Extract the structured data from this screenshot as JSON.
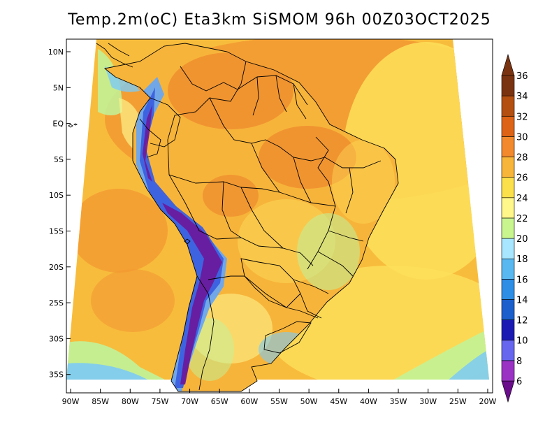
{
  "title": "Temp.2m(oC) Eta3km SiSMOM 96h 00Z03OCT2025",
  "map": {
    "lat_labels": [
      "10N",
      "5N",
      "EQ",
      "5S",
      "10S",
      "15S",
      "20S",
      "25S",
      "30S",
      "35S"
    ],
    "lon_labels": [
      "90W",
      "85W",
      "80W",
      "75W",
      "70W",
      "65W",
      "60W",
      "55W",
      "50W",
      "45W",
      "40W",
      "35W",
      "30W",
      "25W",
      "20W"
    ]
  },
  "colorbar": {
    "levels": [
      "6",
      "8",
      "10",
      "12",
      "14",
      "16",
      "18",
      "20",
      "22",
      "24",
      "26",
      "28",
      "30",
      "32",
      "34",
      "36"
    ],
    "colors": [
      "#6a0c8c",
      "#9a33c4",
      "#6666ee",
      "#1b1bb4",
      "#1a5fcc",
      "#2e8ee6",
      "#5ab8f0",
      "#a8e6ff",
      "#c9f58f",
      "#fff78a",
      "#fbe04b",
      "#f7b53a",
      "#f28a2d",
      "#dd6416",
      "#b34f10",
      "#7a3310"
    ]
  },
  "colors": {
    "ocean_warm": "#f8bc3c",
    "ocean_hot": "#f29a32",
    "ocean_mild": "#fde05a",
    "ocean_cool": "#fbf28a",
    "coast_cool": "#bff39a",
    "coast_cold": "#7ccaf5",
    "land_base": "#f7b43a",
    "land_hot": "#ed8a2e",
    "land_mild": "#fcd959",
    "andes_1": "#6aa7f0",
    "andes_2": "#3b5fe0",
    "andes_3": "#6a1a9c"
  }
}
